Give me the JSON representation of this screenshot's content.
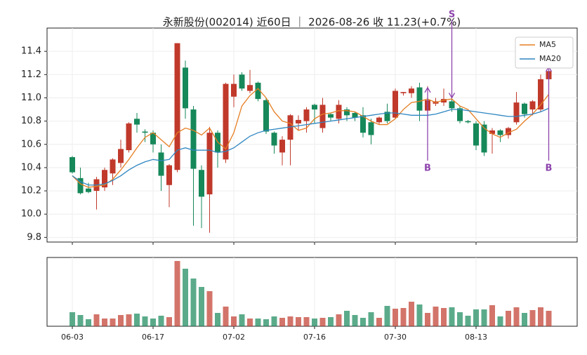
{
  "chart_data": {
    "type": "candlestick",
    "title": "永新股份(002014) 近60日 ｜ 2026-08-26 收 11.23(+0.7%)",
    "categories": [
      "06-03",
      null,
      null,
      null,
      null,
      null,
      null,
      null,
      null,
      null,
      "06-17",
      null,
      null,
      null,
      null,
      null,
      null,
      null,
      null,
      null,
      "07-02",
      null,
      null,
      null,
      null,
      null,
      null,
      null,
      null,
      null,
      "07-16",
      null,
      null,
      null,
      null,
      null,
      null,
      null,
      null,
      null,
      "07-30",
      null,
      null,
      null,
      null,
      null,
      null,
      null,
      null,
      null,
      "08-13",
      null,
      null,
      null,
      null,
      null,
      null,
      null,
      null,
      null
    ],
    "open": [
      10.49,
      10.31,
      10.22,
      10.2,
      10.23,
      10.35,
      10.44,
      10.55,
      10.82,
      10.71,
      10.7,
      10.53,
      10.25,
      10.38,
      11.26,
      10.9,
      10.38,
      10.17,
      10.7,
      10.47,
      11.01,
      11.2,
      11.06,
      11.13,
      10.98,
      10.7,
      10.53,
      10.64,
      10.78,
      10.8,
      10.94,
      10.74,
      10.86,
      10.82,
      10.9,
      10.87,
      10.85,
      10.79,
      10.79,
      10.88,
      10.83,
      11.04,
      11.04,
      11.09,
      10.89,
      10.95,
      10.96,
      10.97,
      10.91,
      10.8,
      10.78,
      10.77,
      10.69,
      10.72,
      10.68,
      10.79,
      10.95,
      10.9,
      10.9,
      11.16
    ],
    "high": [
      10.5,
      10.4,
      10.27,
      10.32,
      10.4,
      10.48,
      10.64,
      10.79,
      10.87,
      10.73,
      10.72,
      10.6,
      10.43,
      11.47,
      11.32,
      10.93,
      10.42,
      10.75,
      10.72,
      11.13,
      11.2,
      11.22,
      11.24,
      11.14,
      11.0,
      10.71,
      10.67,
      10.86,
      10.85,
      10.92,
      10.95,
      11.0,
      10.87,
      10.98,
      10.92,
      10.88,
      10.92,
      10.82,
      10.84,
      10.95,
      11.08,
      11.05,
      11.1,
      11.13,
      11.1,
      11.0,
      11.08,
      11.0,
      10.93,
      10.81,
      10.8,
      10.8,
      10.74,
      10.73,
      10.75,
      11.05,
      10.96,
      10.98,
      11.2,
      11.28
    ],
    "low": [
      10.35,
      10.17,
      10.18,
      10.04,
      10.2,
      10.25,
      10.4,
      10.53,
      10.7,
      10.62,
      10.53,
      10.2,
      10.06,
      10.36,
      10.82,
      9.9,
      9.88,
      9.84,
      10.4,
      10.44,
      10.92,
      11.06,
      11.04,
      10.97,
      10.69,
      10.52,
      10.42,
      10.42,
      10.72,
      10.7,
      10.78,
      10.7,
      10.8,
      10.78,
      10.8,
      10.8,
      10.66,
      10.6,
      10.77,
      10.78,
      10.82,
      11.02,
      11.0,
      10.8,
      10.88,
      10.93,
      10.93,
      10.88,
      10.78,
      10.78,
      10.55,
      10.5,
      10.52,
      10.62,
      10.65,
      10.77,
      10.83,
      10.85,
      10.88,
      11.14
    ],
    "close": [
      10.36,
      10.18,
      10.19,
      10.3,
      10.38,
      10.47,
      10.56,
      10.78,
      10.77,
      10.7,
      10.6,
      10.33,
      10.42,
      11.47,
      10.91,
      10.39,
      10.15,
      10.7,
      10.53,
      11.12,
      11.12,
      11.08,
      11.11,
      10.99,
      10.71,
      10.59,
      10.64,
      10.85,
      10.81,
      10.9,
      10.9,
      10.94,
      10.83,
      10.94,
      10.85,
      10.83,
      10.7,
      10.68,
      10.83,
      10.8,
      11.06,
      11.05,
      11.08,
      10.89,
      10.98,
      10.97,
      10.99,
      10.91,
      10.8,
      10.79,
      10.59,
      10.53,
      10.72,
      10.68,
      10.74,
      10.96,
      10.86,
      10.97,
      11.16,
      11.23
    ],
    "series": [
      {
        "name": "MA5",
        "color": "#e67e22",
        "values": [
          10.33,
          10.26,
          10.23,
          10.24,
          10.25,
          10.3,
          10.38,
          10.47,
          10.57,
          10.66,
          10.7,
          10.64,
          10.58,
          10.7,
          10.74,
          10.72,
          10.68,
          10.74,
          10.62,
          10.56,
          10.7,
          10.93,
          11.02,
          11.08,
          11.0,
          10.88,
          10.8,
          10.78,
          10.72,
          10.74,
          10.82,
          10.86,
          10.87,
          10.89,
          10.89,
          10.88,
          10.84,
          10.8,
          10.77,
          10.77,
          10.82,
          10.9,
          10.96,
          10.97,
          10.99,
          10.96,
          10.98,
          10.99,
          10.93,
          10.9,
          10.82,
          10.74,
          10.69,
          10.66,
          10.7,
          10.73,
          10.8,
          10.86,
          10.94,
          11.03
        ]
      },
      {
        "name": "MA20",
        "color": "#2e86c1",
        "values": [
          10.33,
          10.28,
          10.25,
          10.25,
          10.26,
          10.29,
          10.33,
          10.38,
          10.42,
          10.45,
          10.47,
          10.46,
          10.47,
          10.55,
          10.57,
          10.55,
          10.55,
          10.55,
          10.53,
          10.54,
          10.57,
          10.62,
          10.67,
          10.7,
          10.72,
          10.73,
          10.74,
          10.75,
          10.76,
          10.77,
          10.78,
          10.79,
          10.8,
          10.81,
          10.82,
          10.83,
          10.84,
          10.85,
          10.86,
          10.87,
          10.87,
          10.86,
          10.85,
          10.85,
          10.85,
          10.86,
          10.88,
          10.9,
          10.9,
          10.89,
          10.88,
          10.87,
          10.86,
          10.85,
          10.84,
          10.84,
          10.85,
          10.86,
          10.88,
          10.91
        ]
      }
    ],
    "volume": [
      20,
      16,
      10,
      17,
      11,
      11,
      16,
      17,
      18,
      14,
      11,
      15,
      13,
      93,
      82,
      68,
      56,
      50,
      19,
      28,
      14,
      17,
      11,
      11,
      10,
      14,
      12,
      14,
      13,
      13,
      11,
      12,
      13,
      17,
      22,
      16,
      12,
      20,
      12,
      29,
      25,
      26,
      35,
      31,
      19,
      28,
      26,
      27,
      20,
      15,
      24,
      24,
      30,
      14,
      22,
      27,
      19,
      23,
      27,
      22
    ],
    "signals": [
      {
        "text": "B",
        "index": 44
      },
      {
        "text": "S",
        "index": 47
      },
      {
        "text": "B",
        "index": 59
      }
    ],
    "up_color": "#c0392b",
    "down_color": "#16885a",
    "ylim": [
      9.76,
      11.6
    ],
    "yticks": [
      9.8,
      {
        "value": 10,
        "label": "10.0"
      },
      10.2,
      10.4,
      10.6,
      10.8,
      {
        "value": 11,
        "label": "11.0"
      },
      11.2,
      11.4
    ],
    "grid": true,
    "legend": "upper right"
  }
}
